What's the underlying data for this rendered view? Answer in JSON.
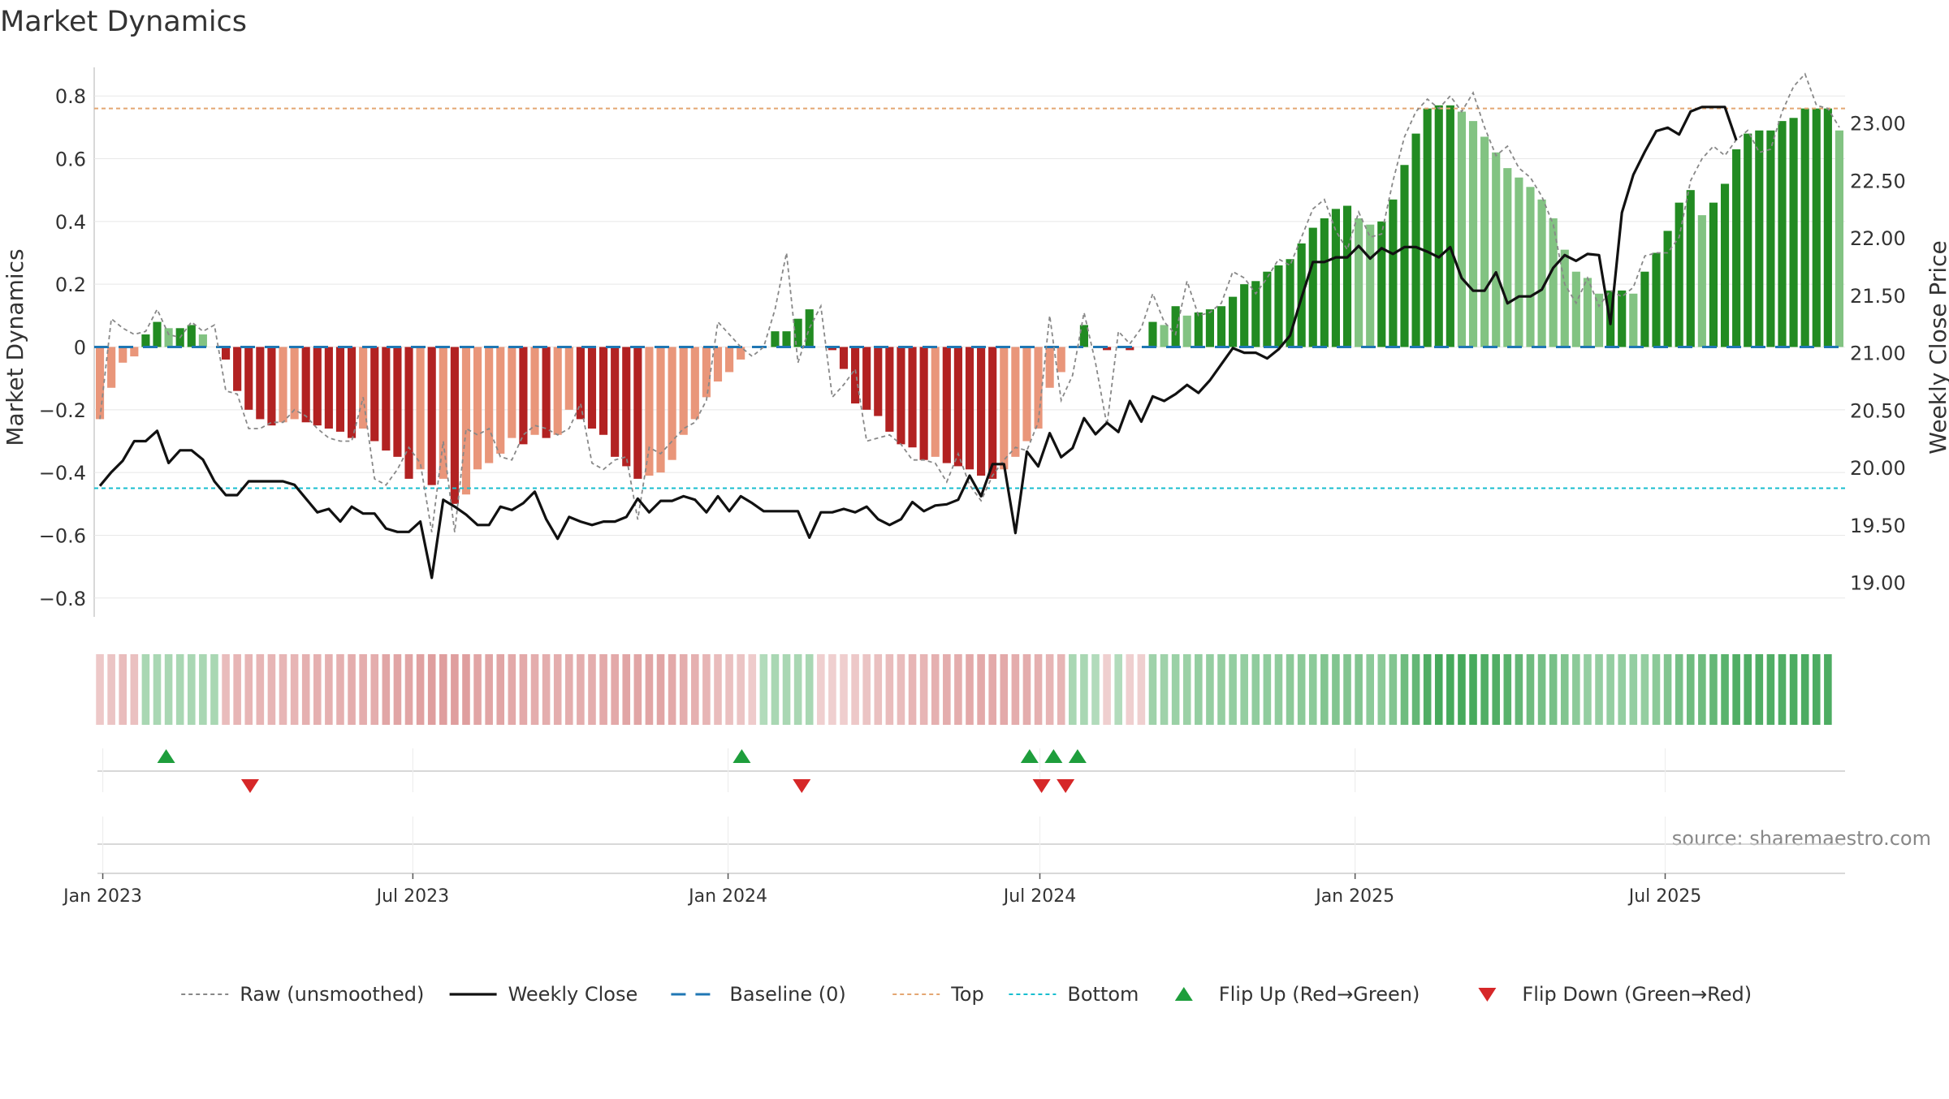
{
  "chart_data": {
    "type": "bar",
    "title": "Market Dynamics",
    "source": "source: sharemaestro.com",
    "x_tick_labels": [
      "Jan 2023",
      "Jul 2023",
      "Jan 2024",
      "Jul 2024",
      "Jan 2025",
      "Jul 2025"
    ],
    "x_tick_dates": [
      "2023-01-01",
      "2023-07-01",
      "2024-01-01",
      "2024-07-01",
      "2025-01-01",
      "2025-07-01"
    ],
    "x_start": "2022-12-27",
    "x_end": "2025-10-14",
    "left_axis": {
      "label": "Market Dynamics",
      "ylim": [
        -0.86,
        0.86
      ],
      "ticks": [
        0.8,
        0.6,
        0.4,
        0.2,
        0,
        -0.2,
        -0.4,
        -0.6,
        -0.8
      ],
      "tick_labels": [
        "0.8",
        "0.6",
        "0.4",
        "0.2",
        "0",
        "−0.2",
        "−0.4",
        "−0.6",
        "−0.8"
      ]
    },
    "right_axis": {
      "label": "Weekly Close Price",
      "ylim": [
        18.7,
        23.4
      ],
      "ticks": [
        23.0,
        22.5,
        22.0,
        21.5,
        21.0,
        20.5,
        20.0,
        19.5,
        19.0
      ],
      "tick_labels": [
        "23.00",
        "22.50",
        "22.00",
        "21.50",
        "21.00",
        "20.50",
        "20.00",
        "19.50",
        "19.00"
      ]
    },
    "reference_lines": {
      "baseline": 0,
      "top": 0.76,
      "bottom": -0.45
    },
    "colors": {
      "strong_red": "#b22222",
      "light_red": "#e9967a",
      "strong_green": "#228b22",
      "light_green": "#82c382",
      "price": "#111111",
      "raw": "#888888",
      "baseline": "#1f77b4",
      "top": "#e4a672",
      "bottom": "#17becf",
      "flip_up": "#1e9e3c",
      "flip_down": "#d62728"
    },
    "series": [
      {
        "name": "Market Dynamics",
        "values": [
          -0.23,
          -0.13,
          -0.05,
          -0.03,
          0.04,
          0.08,
          0.06,
          0.06,
          0.07,
          0.04,
          0,
          -0.04,
          -0.14,
          -0.2,
          -0.23,
          -0.25,
          -0.24,
          -0.23,
          -0.24,
          -0.25,
          -0.26,
          -0.27,
          -0.29,
          -0.26,
          -0.3,
          -0.33,
          -0.35,
          -0.42,
          -0.39,
          -0.44,
          -0.42,
          -0.5,
          -0.47,
          -0.39,
          -0.37,
          -0.34,
          -0.29,
          -0.31,
          -0.28,
          -0.29,
          -0.28,
          -0.2,
          -0.23,
          -0.26,
          -0.28,
          -0.35,
          -0.38,
          -0.42,
          -0.41,
          -0.4,
          -0.36,
          -0.28,
          -0.23,
          -0.16,
          -0.11,
          -0.08,
          -0.04,
          0,
          0,
          0.05,
          0.05,
          0.09,
          0.12,
          0,
          -0.01,
          -0.07,
          -0.18,
          -0.2,
          -0.22,
          -0.27,
          -0.31,
          -0.32,
          -0.36,
          -0.35,
          -0.37,
          -0.38,
          -0.39,
          -0.41,
          -0.42,
          -0.39,
          -0.35,
          -0.3,
          -0.26,
          -0.13,
          -0.08,
          0,
          0.07,
          0,
          -0.01,
          0,
          -0.01,
          0,
          0.08,
          0.07,
          0.13,
          0.1,
          0.11,
          0.12,
          0.13,
          0.16,
          0.2,
          0.21,
          0.24,
          0.26,
          0.28,
          0.33,
          0.38,
          0.41,
          0.44,
          0.45,
          0.41,
          0.39,
          0.4,
          0.47,
          0.58,
          0.68,
          0.76,
          0.77,
          0.77,
          0.75,
          0.72,
          0.67,
          0.62,
          0.57,
          0.54,
          0.51,
          0.47,
          0.41,
          0.31,
          0.24,
          0.22,
          0.17,
          0.18,
          0.18,
          0.17,
          0.24,
          0.3,
          0.37,
          0.46,
          0.5,
          0.42,
          0.46,
          0.52,
          0.63,
          0.68,
          0.69,
          0.69,
          0.72,
          0.73,
          0.76,
          0.76,
          0.76,
          0.69
        ]
      },
      {
        "name": "Raw (unsmoothed)",
        "values": [
          -0.23,
          0.09,
          0.06,
          0.04,
          0.05,
          0.12,
          0.04,
          0.03,
          0.08,
          0.05,
          0.07,
          -0.14,
          -0.15,
          -0.26,
          -0.26,
          -0.24,
          -0.24,
          -0.2,
          -0.22,
          -0.26,
          -0.29,
          -0.3,
          -0.3,
          -0.16,
          -0.42,
          -0.44,
          -0.39,
          -0.32,
          -0.37,
          -0.59,
          -0.3,
          -0.59,
          -0.26,
          -0.28,
          -0.26,
          -0.35,
          -0.36,
          -0.28,
          -0.25,
          -0.26,
          -0.28,
          -0.26,
          -0.18,
          -0.37,
          -0.39,
          -0.36,
          -0.35,
          -0.55,
          -0.32,
          -0.34,
          -0.3,
          -0.26,
          -0.24,
          -0.17,
          0.08,
          0.04,
          0.0,
          -0.03,
          0.0,
          0.12,
          0.3,
          -0.05,
          0.06,
          0.13,
          -0.16,
          -0.12,
          -0.07,
          -0.3,
          -0.29,
          -0.28,
          -0.31,
          -0.36,
          -0.36,
          -0.37,
          -0.43,
          -0.34,
          -0.44,
          -0.49,
          -0.41,
          -0.36,
          -0.32,
          -0.33,
          -0.24,
          0.1,
          -0.17,
          -0.09,
          0.11,
          -0.05,
          -0.25,
          0.05,
          0.01,
          0.06,
          0.17,
          0.08,
          0.04,
          0.21,
          0.1,
          0.11,
          0.14,
          0.24,
          0.22,
          0.17,
          0.22,
          0.28,
          0.26,
          0.35,
          0.44,
          0.47,
          0.37,
          0.31,
          0.43,
          0.35,
          0.36,
          0.53,
          0.67,
          0.75,
          0.79,
          0.76,
          0.8,
          0.75,
          0.81,
          0.7,
          0.61,
          0.64,
          0.57,
          0.54,
          0.48,
          0.39,
          0.2,
          0.14,
          0.22,
          0.13,
          0.18,
          0.16,
          0.19,
          0.29,
          0.3,
          0.3,
          0.35,
          0.53,
          0.6,
          0.64,
          0.61,
          0.66,
          0.69,
          0.62,
          0.63,
          0.75,
          0.83,
          0.87,
          0.77,
          0.76,
          0.7
        ]
      },
      {
        "name": "Weekly Close",
        "values": [
          19.84,
          19.96,
          20.06,
          20.23,
          20.23,
          20.32,
          20.04,
          20.15,
          20.15,
          20.07,
          19.88,
          19.76,
          19.76,
          19.88,
          19.88,
          19.88,
          19.88,
          19.85,
          19.73,
          19.61,
          19.64,
          19.53,
          19.66,
          19.6,
          19.6,
          19.47,
          19.44,
          19.44,
          19.53,
          19.04,
          19.72,
          19.66,
          19.59,
          19.5,
          19.5,
          19.66,
          19.63,
          19.69,
          19.79,
          19.55,
          19.38,
          19.57,
          19.53,
          19.5,
          19.53,
          19.53,
          19.57,
          19.73,
          19.61,
          19.71,
          19.71,
          19.75,
          19.72,
          19.61,
          19.75,
          19.62,
          19.75,
          19.69,
          19.62,
          19.62,
          19.62,
          19.62,
          19.39,
          19.61,
          19.61,
          19.64,
          19.61,
          19.66,
          19.55,
          19.5,
          19.55,
          19.7,
          19.62,
          19.67,
          19.68,
          19.72,
          19.93,
          19.75,
          20.03,
          20.03,
          19.43,
          20.14,
          20.01,
          20.3,
          20.09,
          20.17,
          20.43,
          20.29,
          20.39,
          20.31,
          20.58,
          20.4,
          20.62,
          20.58,
          20.64,
          20.72,
          20.65,
          20.76,
          20.9,
          21.04,
          21.0,
          21.0,
          20.95,
          21.03,
          21.15,
          21.48,
          21.79,
          21.79,
          21.83,
          21.83,
          21.93,
          21.82,
          21.91,
          21.86,
          21.92,
          21.92,
          21.88,
          21.83,
          21.92,
          21.65,
          21.54,
          21.54,
          21.7,
          21.43,
          21.49,
          21.49,
          21.55,
          21.74,
          21.85,
          21.8,
          21.86,
          21.85,
          21.25,
          22.22,
          22.55,
          22.75,
          22.93,
          22.96,
          22.9,
          23.1,
          23.14,
          23.14,
          23.14,
          22.85
        ]
      }
    ],
    "regime_strip": {
      "shade_levels_negative": [
        -0.1,
        -0.14,
        -0.16,
        -0.2,
        -0.25,
        -0.3,
        -0.35,
        -0.4,
        -0.45
      ],
      "values": [
        -0.18,
        -0.2,
        -0.25,
        -0.22,
        0.25,
        0.25,
        0.25,
        0.25,
        0.25,
        0.25,
        0.25,
        -0.25,
        -0.3,
        -0.3,
        -0.3,
        -0.3,
        -0.3,
        -0.3,
        -0.32,
        -0.32,
        -0.32,
        -0.32,
        -0.35,
        -0.35,
        -0.35,
        -0.4,
        -0.4,
        -0.4,
        -0.42,
        -0.45,
        -0.45,
        -0.45,
        -0.45,
        -0.4,
        -0.4,
        -0.4,
        -0.38,
        -0.38,
        -0.35,
        -0.35,
        -0.35,
        -0.35,
        -0.35,
        -0.35,
        -0.38,
        -0.38,
        -0.4,
        -0.4,
        -0.4,
        -0.4,
        -0.38,
        -0.35,
        -0.32,
        -0.3,
        -0.25,
        -0.22,
        -0.2,
        -0.15,
        0.2,
        0.25,
        0.25,
        0.25,
        0.25,
        -0.12,
        -0.12,
        -0.14,
        -0.18,
        -0.2,
        -0.22,
        -0.25,
        -0.25,
        -0.3,
        -0.3,
        -0.32,
        -0.35,
        -0.35,
        -0.38,
        -0.38,
        -0.38,
        -0.38,
        -0.35,
        -0.35,
        -0.32,
        -0.3,
        -0.3,
        0.25,
        0.25,
        0.2,
        -0.12,
        0.2,
        -0.12,
        -0.12,
        0.3,
        0.3,
        0.32,
        0.32,
        0.35,
        0.35,
        0.35,
        0.35,
        0.35,
        0.38,
        0.38,
        0.38,
        0.4,
        0.4,
        0.4,
        0.45,
        0.45,
        0.45,
        0.45,
        0.4,
        0.4,
        0.45,
        0.55,
        0.6,
        0.7,
        0.75,
        0.75,
        0.75,
        0.75,
        0.7,
        0.7,
        0.65,
        0.6,
        0.55,
        0.5,
        0.5,
        0.45,
        0.4,
        0.35,
        0.35,
        0.35,
        0.35,
        0.35,
        0.35,
        0.4,
        0.45,
        0.5,
        0.55,
        0.55,
        0.6,
        0.65,
        0.7,
        0.7,
        0.7,
        0.7,
        0.7,
        0.72,
        0.72,
        0.72,
        0.72
      ]
    },
    "flips_up": [
      "2023-02-07",
      "2024-01-09",
      "2024-06-25",
      "2024-07-09",
      "2024-07-23"
    ],
    "flips_down": [
      "2023-03-28",
      "2024-02-13",
      "2024-07-02",
      "2024-07-16"
    ],
    "legend": {
      "position": "bottom-center",
      "items": [
        {
          "label": "Raw (unsmoothed)",
          "symbol": "raw"
        },
        {
          "label": "Weekly Close",
          "symbol": "price"
        },
        {
          "label": "Baseline (0)",
          "symbol": "baseline"
        },
        {
          "label": "Top",
          "symbol": "top"
        },
        {
          "label": "Bottom",
          "symbol": "bottom"
        },
        {
          "label": "Flip Up (Red→Green)",
          "symbol": "flip_up"
        },
        {
          "label": "Flip Down (Green→Red)",
          "symbol": "flip_down"
        }
      ]
    }
  }
}
